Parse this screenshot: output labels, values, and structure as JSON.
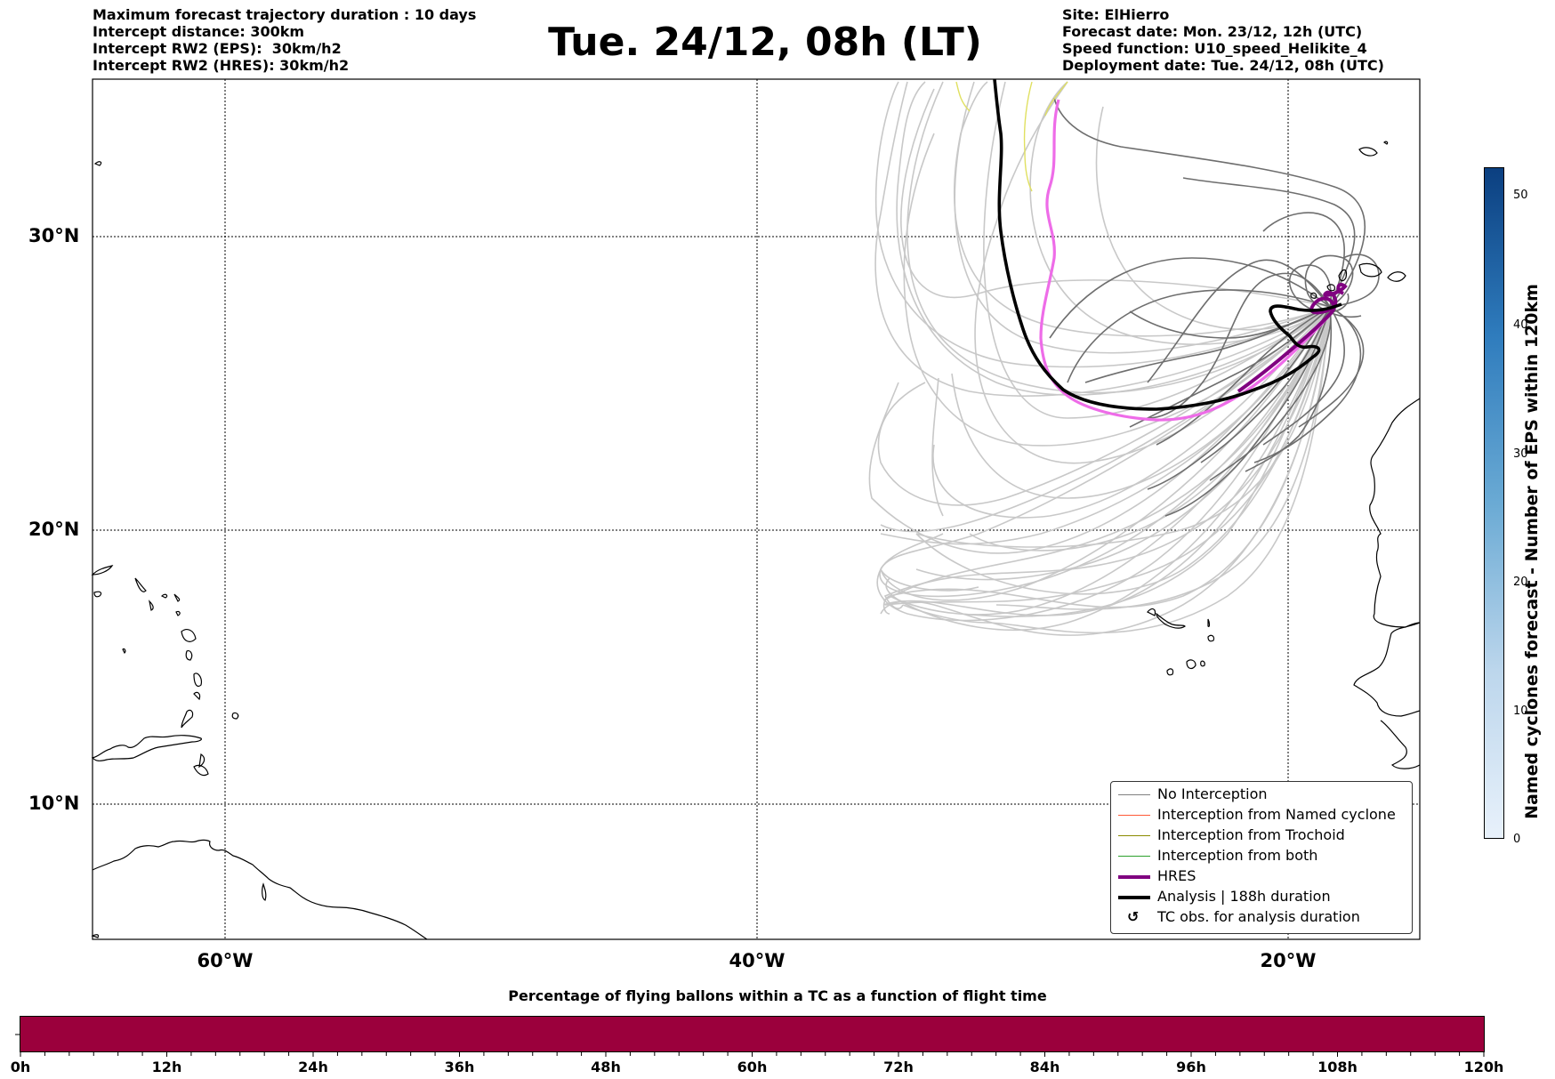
{
  "header": {
    "left_lines": [
      "Maximum forecast trajectory duration : 10 days",
      "Intercept distance: 300km",
      "Intercept RW2 (EPS):  30km/h2",
      "Intercept RW2 (HRES): 30km/h2"
    ],
    "title": "Tue. 24/12, 08h (LT)",
    "right_lines": [
      "Site: ElHierro",
      "Forecast date: Mon. 23/12, 12h (UTC)",
      "Speed function: U10_speed_Helikite_4",
      "Deployment date: Tue. 24/12, 08h (UTC)"
    ]
  },
  "map": {
    "lat_labels": [
      "30°N",
      "20°N",
      "10°N"
    ],
    "lon_labels": [
      "60°W",
      "40°W",
      "20°W"
    ]
  },
  "legend": {
    "items": [
      {
        "label": "No Interception",
        "color": "#808080",
        "style": "thin"
      },
      {
        "label": "Interception from Named cyclone",
        "color": "#ff5a36",
        "style": "thin"
      },
      {
        "label": "Interception from Trochoid",
        "color": "#8b8b00",
        "style": "thin"
      },
      {
        "label": "Interception from both",
        "color": "#2ca02c",
        "style": "thin"
      },
      {
        "label": "HRES",
        "color": "#800080",
        "style": "thick"
      },
      {
        "label": "Analysis | 188h duration",
        "color": "#000000",
        "style": "thick"
      },
      {
        "label": "TC obs. for analysis duration",
        "color": "#000000",
        "style": "symbol"
      }
    ]
  },
  "colorbar": {
    "label": "Named cyclones forecast - Number of EPS within 120km",
    "ticks": [
      "0",
      "10",
      "20",
      "30",
      "40",
      "50"
    ],
    "color_low": "#e8f1fb",
    "color_high": "#0b3f80"
  },
  "flight_bar": {
    "title": "Percentage of flying ballons within a TC as a function of flight time",
    "color": "#9b003c",
    "ticks": [
      "0h",
      "12h",
      "24h",
      "36h",
      "48h",
      "60h",
      "72h",
      "84h",
      "96h",
      "108h",
      "120h"
    ]
  }
}
